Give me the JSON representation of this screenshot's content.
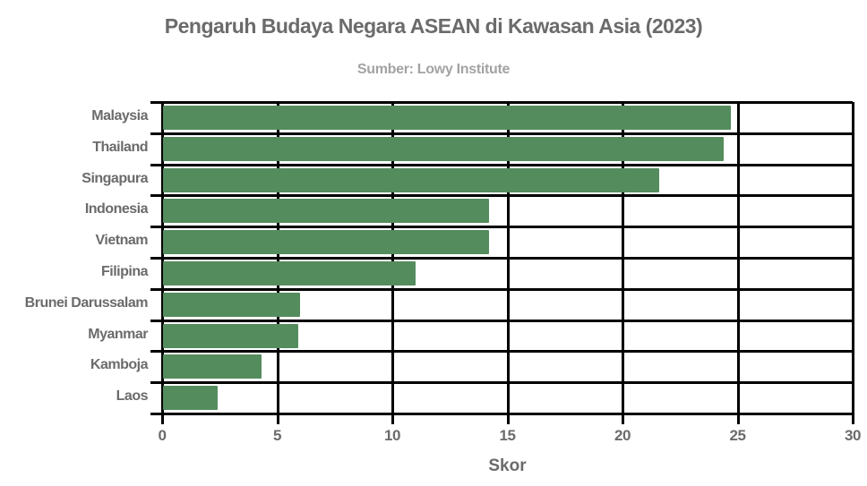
{
  "chart_data": {
    "type": "bar",
    "orientation": "horizontal",
    "title": "Pengaruh Budaya Negara ASEAN di Kawasan Asia  (2023)",
    "subtitle": "Sumber: Lowy Institute",
    "xlabel": "Skor",
    "ylabel": "",
    "categories": [
      "Malaysia",
      "Thailand",
      "Singapura",
      "Indonesia",
      "Vietnam",
      "Filipina",
      "Brunei Darussalam",
      "Myanmar",
      "Kamboja",
      "Laos"
    ],
    "values": [
      24.7,
      24.4,
      21.6,
      14.2,
      14.2,
      11.0,
      6.0,
      5.9,
      4.3,
      2.4
    ],
    "xlim": [
      0,
      30
    ],
    "xticks": [
      "0",
      "5",
      "10",
      "15",
      "20",
      "25",
      "30"
    ],
    "grid": true,
    "legend": null,
    "bar_color": "#548c5e"
  }
}
